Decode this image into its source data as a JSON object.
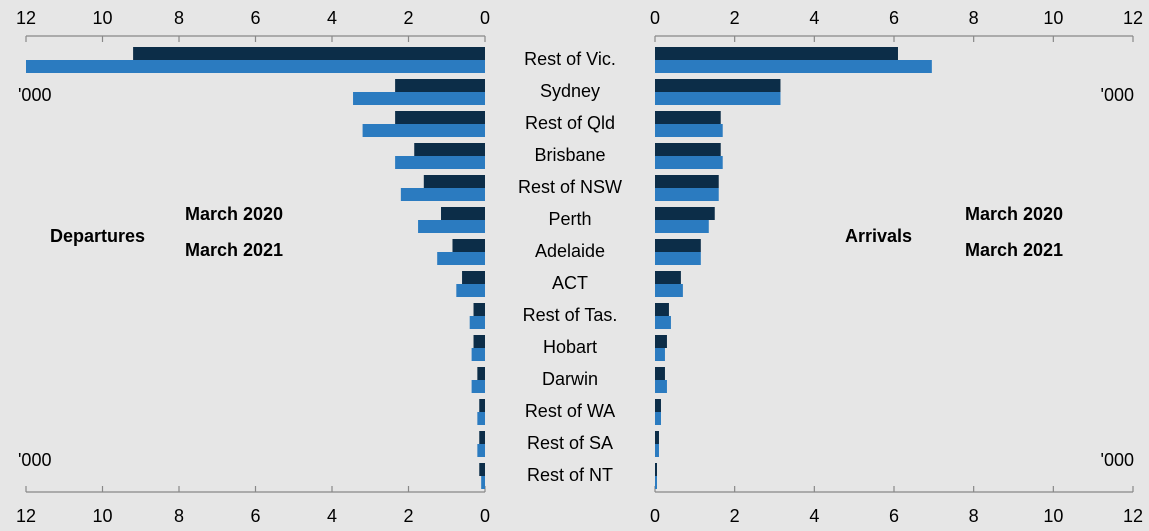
{
  "chart_data": [
    {
      "type": "bar",
      "orientation": "horizontal",
      "title": "Departures",
      "unit": "'000",
      "categories": [
        "Rest of Vic.",
        "Sydney",
        "Rest of Qld",
        "Brisbane",
        "Rest of NSW",
        "Perth",
        "Adelaide",
        "ACT",
        "Rest of Tas.",
        "Hobart",
        "Darwin",
        "Rest of WA",
        "Rest of SA",
        "Rest of NT"
      ],
      "series": [
        {
          "name": "March 2020",
          "color": "#0c2d48",
          "values": [
            9.2,
            2.35,
            2.35,
            1.85,
            1.6,
            1.15,
            0.85,
            0.6,
            0.3,
            0.3,
            0.2,
            0.15,
            0.15,
            0.15
          ]
        },
        {
          "name": "March 2021",
          "color": "#2b7bc0",
          "values": [
            12.0,
            3.45,
            3.2,
            2.35,
            2.2,
            1.75,
            1.25,
            0.75,
            0.4,
            0.35,
            0.35,
            0.2,
            0.2,
            0.1
          ]
        }
      ],
      "xlim": [
        0,
        12
      ],
      "x_reversed": true,
      "xticks": [
        0,
        2,
        4,
        6,
        8,
        10,
        12
      ]
    },
    {
      "type": "bar",
      "orientation": "horizontal",
      "title": "Arrivals",
      "unit": "'000",
      "series": [
        {
          "name": "March 2020",
          "color": "#0c2d48",
          "values": [
            6.1,
            3.15,
            1.65,
            1.65,
            1.6,
            1.5,
            1.15,
            0.65,
            0.35,
            0.3,
            0.25,
            0.15,
            0.1,
            0.05
          ]
        },
        {
          "name": "March 2021",
          "color": "#2b7bc0",
          "values": [
            6.95,
            3.15,
            1.7,
            1.7,
            1.6,
            1.35,
            1.15,
            0.7,
            0.4,
            0.25,
            0.3,
            0.15,
            0.1,
            0.05
          ]
        }
      ],
      "xlim": [
        0,
        12
      ],
      "x_reversed": false,
      "xticks": [
        0,
        2,
        4,
        6,
        8,
        10,
        12
      ]
    }
  ]
}
